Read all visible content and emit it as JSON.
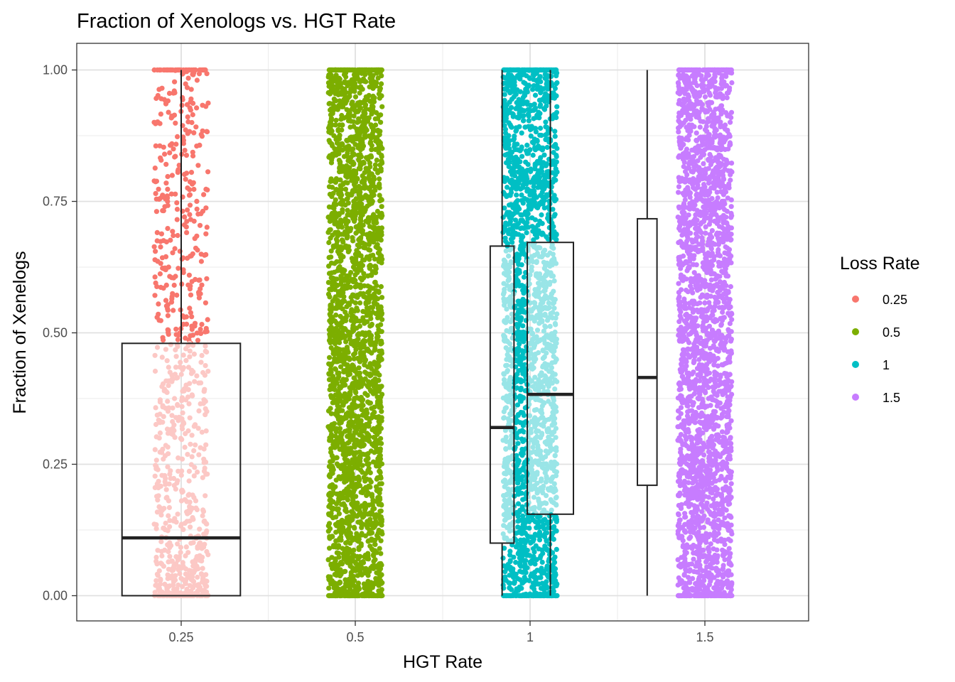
{
  "chart_data": {
    "type": "boxplot+jitter",
    "title": "Fraction of Xenologs vs. HGT Rate",
    "xlabel": "HGT Rate",
    "ylabel": "Fraction of Xenelogs",
    "categories": [
      "0.25",
      "0.5",
      "1",
      "1.5"
    ],
    "y_ticks": [
      "0.00",
      "0.25",
      "0.50",
      "0.75",
      "1.00"
    ],
    "ylim": [
      -0.05,
      1.05
    ],
    "grid": true,
    "legend": {
      "title": "Loss Rate",
      "position": "right",
      "entries": [
        {
          "label": "0.25",
          "color": "#F8766D"
        },
        {
          "label": "0.5",
          "color": "#7CAE00"
        },
        {
          "label": "1",
          "color": "#00BFC4"
        },
        {
          "label": "1.5",
          "color": "#C77CFF"
        }
      ]
    },
    "jitter_series": [
      {
        "name": "0.25",
        "category": 0.25,
        "color": "#F8766D",
        "y_range": [
          0,
          1
        ],
        "approx_points": 900
      },
      {
        "name": "0.5",
        "category": 0.5,
        "color": "#7CAE00",
        "y_range": [
          0,
          1
        ],
        "approx_points": 2500
      },
      {
        "name": "1",
        "category": 1,
        "color": "#00BFC4",
        "y_range": [
          0,
          1
        ],
        "approx_points": 2200
      },
      {
        "name": "1.5",
        "category": 1.5,
        "color": "#C77CFF",
        "y_range": [
          0,
          1
        ],
        "approx_points": 2500
      }
    ],
    "boxes": [
      {
        "x_center": 0.25,
        "x_half_width": 0.085,
        "q1": 0.0,
        "median": 0.11,
        "q3": 0.48,
        "whisker_low": 0.0,
        "whisker_high": 1.0
      },
      {
        "x_center": 0.92,
        "x_half_width": 0.034,
        "q1": 0.1,
        "median": 0.32,
        "q3": 0.665,
        "whisker_low": 0.0,
        "whisker_high": 1.0
      },
      {
        "x_center": 1.058,
        "x_half_width": 0.066,
        "q1": 0.155,
        "median": 0.383,
        "q3": 0.672,
        "whisker_low": 0.0,
        "whisker_high": 1.0
      },
      {
        "x_center": 1.335,
        "x_half_width": 0.028,
        "q1": 0.21,
        "median": 0.415,
        "q3": 0.717,
        "whisker_low": 0.0,
        "whisker_high": 1.0
      }
    ]
  }
}
